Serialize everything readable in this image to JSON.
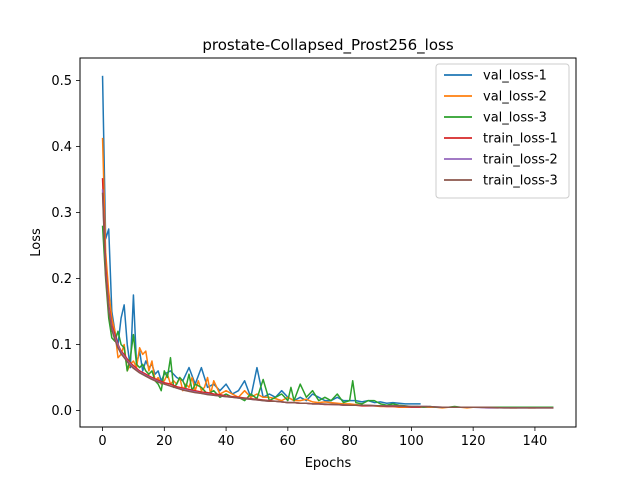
{
  "chart_data": {
    "type": "line",
    "title": "prostate-Collapsed_Prost256_loss",
    "xlabel": "Epochs",
    "ylabel": "Loss",
    "xlim": [
      -7.3,
      153.3
    ],
    "ylim": [
      -0.025,
      0.534
    ],
    "xticks": [
      0,
      20,
      40,
      60,
      80,
      100,
      120,
      140
    ],
    "yticks": [
      0.0,
      0.1,
      0.2,
      0.3,
      0.4,
      0.5
    ],
    "ytick_labels": [
      "0.0",
      "0.1",
      "0.2",
      "0.3",
      "0.4",
      "0.5"
    ],
    "grid": false,
    "legend_position": "top-right",
    "series": [
      {
        "name": "val_loss-1",
        "color": "#1f77b4",
        "x": [
          0,
          1,
          2,
          3,
          4,
          5,
          6,
          7,
          8,
          9,
          10,
          11,
          12,
          13,
          14,
          15,
          16,
          17,
          18,
          19,
          20,
          22,
          24,
          26,
          28,
          30,
          32,
          34,
          36,
          38,
          40,
          42,
          44,
          46,
          48,
          50,
          52,
          54,
          56,
          58,
          60,
          62,
          64,
          66,
          68,
          70,
          72,
          74,
          76,
          78,
          80,
          82,
          84,
          86,
          88,
          90,
          92,
          94,
          96,
          98,
          100,
          103
        ],
        "values": [
          0.507,
          0.26,
          0.275,
          0.15,
          0.12,
          0.1,
          0.14,
          0.16,
          0.1,
          0.065,
          0.175,
          0.07,
          0.09,
          0.06,
          0.075,
          0.065,
          0.07,
          0.055,
          0.06,
          0.045,
          0.055,
          0.06,
          0.05,
          0.045,
          0.065,
          0.04,
          0.065,
          0.035,
          0.04,
          0.03,
          0.04,
          0.025,
          0.03,
          0.045,
          0.02,
          0.065,
          0.02,
          0.025,
          0.02,
          0.03,
          0.02,
          0.015,
          0.02,
          0.015,
          0.025,
          0.02,
          0.015,
          0.015,
          0.02,
          0.015,
          0.015,
          0.015,
          0.013,
          0.015,
          0.012,
          0.013,
          0.011,
          0.012,
          0.011,
          0.01,
          0.01,
          0.01
        ]
      },
      {
        "name": "val_loss-2",
        "color": "#ff7f0e",
        "x": [
          0,
          1,
          2,
          3,
          4,
          5,
          6,
          7,
          8,
          9,
          10,
          11,
          12,
          13,
          14,
          15,
          16,
          17,
          18,
          19,
          20,
          21,
          22,
          23,
          24,
          25,
          26,
          27,
          28,
          29,
          30,
          31,
          32,
          33,
          34,
          35,
          36,
          38,
          40,
          42,
          44,
          46,
          48,
          50,
          52,
          54,
          56,
          58,
          60,
          62,
          64,
          66,
          68,
          70,
          72,
          74,
          76,
          78,
          80,
          82,
          84,
          86,
          88,
          90,
          92,
          94,
          96,
          98,
          100,
          102,
          104,
          106,
          108,
          110,
          112,
          114,
          116,
          118,
          120,
          122,
          124,
          126,
          128,
          130,
          132,
          134,
          136,
          138,
          140,
          142,
          144,
          146
        ],
        "values": [
          0.413,
          0.24,
          0.18,
          0.14,
          0.12,
          0.08,
          0.085,
          0.1,
          0.06,
          0.07,
          0.075,
          0.065,
          0.095,
          0.085,
          0.09,
          0.06,
          0.075,
          0.045,
          0.05,
          0.04,
          0.045,
          0.055,
          0.04,
          0.045,
          0.04,
          0.05,
          0.03,
          0.04,
          0.035,
          0.05,
          0.03,
          0.045,
          0.03,
          0.035,
          0.05,
          0.025,
          0.045,
          0.025,
          0.03,
          0.025,
          0.02,
          0.03,
          0.02,
          0.025,
          0.02,
          0.02,
          0.018,
          0.015,
          0.02,
          0.015,
          0.015,
          0.017,
          0.013,
          0.012,
          0.013,
          0.012,
          0.011,
          0.01,
          0.01,
          0.009,
          0.008,
          0.008,
          0.007,
          0.006,
          0.006,
          0.006,
          0.005,
          0.005,
          0.005,
          0.005,
          0.005,
          0.005,
          0.005,
          0.004,
          0.005,
          0.005,
          0.005,
          0.004,
          0.005,
          0.005,
          0.004,
          0.004,
          0.004,
          0.005,
          0.004,
          0.004,
          0.005,
          0.004,
          0.004,
          0.005,
          0.005,
          0.004
        ]
      },
      {
        "name": "val_loss-3",
        "color": "#2ca02c",
        "x": [
          0,
          1,
          2,
          3,
          4,
          5,
          6,
          7,
          8,
          9,
          10,
          11,
          12,
          13,
          14,
          15,
          16,
          17,
          18,
          19,
          20,
          21,
          22,
          23,
          24,
          25,
          26,
          27,
          28,
          29,
          30,
          32,
          34,
          36,
          38,
          40,
          42,
          44,
          46,
          48,
          50,
          52,
          54,
          56,
          58,
          60,
          61,
          62,
          64,
          66,
          68,
          70,
          72,
          74,
          76,
          78,
          80,
          81,
          82,
          84,
          86,
          88,
          90,
          92,
          94,
          96,
          98,
          100,
          102,
          104,
          106,
          108,
          110,
          112,
          114,
          116,
          118,
          120,
          122,
          124,
          126,
          128,
          130,
          132,
          134,
          136,
          138,
          140,
          142,
          144,
          146
        ],
        "values": [
          0.28,
          0.2,
          0.14,
          0.11,
          0.105,
          0.12,
          0.1,
          0.095,
          0.06,
          0.08,
          0.115,
          0.07,
          0.065,
          0.07,
          0.06,
          0.055,
          0.06,
          0.045,
          0.04,
          0.03,
          0.06,
          0.05,
          0.08,
          0.035,
          0.04,
          0.05,
          0.045,
          0.035,
          0.055,
          0.03,
          0.04,
          0.035,
          0.025,
          0.03,
          0.02,
          0.025,
          0.02,
          0.02,
          0.015,
          0.025,
          0.018,
          0.047,
          0.015,
          0.02,
          0.025,
          0.015,
          0.035,
          0.015,
          0.04,
          0.02,
          0.03,
          0.015,
          0.02,
          0.015,
          0.025,
          0.012,
          0.015,
          0.045,
          0.012,
          0.01,
          0.015,
          0.015,
          0.01,
          0.008,
          0.01,
          0.008,
          0.007,
          0.006,
          0.006,
          0.005,
          0.006,
          0.005,
          0.005,
          0.005,
          0.006,
          0.005,
          0.005,
          0.005,
          0.005,
          0.005,
          0.005,
          0.005,
          0.005,
          0.005,
          0.005,
          0.005,
          0.005,
          0.005,
          0.005,
          0.005,
          0.005
        ]
      },
      {
        "name": "train_loss-1",
        "color": "#d62728",
        "x": [
          0,
          1,
          2,
          3,
          4,
          5,
          6,
          7,
          8,
          9,
          10,
          12,
          14,
          16,
          18,
          20,
          22,
          24,
          26,
          28,
          30,
          32,
          34,
          36,
          38,
          40,
          42,
          44,
          46,
          48,
          50,
          52,
          54,
          56,
          58,
          60,
          62,
          64,
          66,
          68,
          70,
          72,
          74,
          76,
          78,
          80,
          82,
          84,
          86,
          88,
          90,
          92,
          94,
          96,
          98,
          100,
          103
        ],
        "values": [
          0.352,
          0.22,
          0.16,
          0.13,
          0.115,
          0.1,
          0.09,
          0.085,
          0.078,
          0.072,
          0.068,
          0.06,
          0.055,
          0.05,
          0.046,
          0.042,
          0.04,
          0.036,
          0.034,
          0.032,
          0.03,
          0.028,
          0.027,
          0.025,
          0.024,
          0.022,
          0.021,
          0.02,
          0.019,
          0.018,
          0.017,
          0.016,
          0.015,
          0.014,
          0.013,
          0.012,
          0.012,
          0.011,
          0.011,
          0.01,
          0.01,
          0.009,
          0.009,
          0.009,
          0.008,
          0.008,
          0.008,
          0.007,
          0.007,
          0.007,
          0.007,
          0.006,
          0.006,
          0.006,
          0.006,
          0.005,
          0.005
        ]
      },
      {
        "name": "train_loss-2",
        "color": "#9467bd",
        "x": [
          0,
          1,
          2,
          3,
          4,
          5,
          6,
          7,
          8,
          9,
          10,
          12,
          14,
          16,
          18,
          20,
          22,
          24,
          26,
          28,
          30,
          32,
          34,
          36,
          38,
          40,
          42,
          44,
          46,
          48,
          50,
          52,
          54,
          56,
          58,
          60,
          62,
          64,
          66,
          68,
          70,
          75,
          80,
          85,
          90,
          95,
          100,
          105,
          110,
          115,
          120,
          125,
          130,
          135,
          140,
          146
        ],
        "values": [
          0.335,
          0.21,
          0.155,
          0.125,
          0.11,
          0.098,
          0.088,
          0.082,
          0.075,
          0.07,
          0.065,
          0.058,
          0.053,
          0.048,
          0.044,
          0.04,
          0.037,
          0.034,
          0.032,
          0.03,
          0.028,
          0.026,
          0.025,
          0.023,
          0.022,
          0.021,
          0.02,
          0.019,
          0.018,
          0.017,
          0.016,
          0.015,
          0.014,
          0.014,
          0.013,
          0.012,
          0.012,
          0.011,
          0.011,
          0.01,
          0.01,
          0.009,
          0.008,
          0.008,
          0.007,
          0.007,
          0.006,
          0.006,
          0.005,
          0.005,
          0.005,
          0.004,
          0.004,
          0.004,
          0.004,
          0.004
        ]
      },
      {
        "name": "train_loss-3",
        "color": "#8c564b",
        "x": [
          0,
          1,
          2,
          3,
          4,
          5,
          6,
          7,
          8,
          9,
          10,
          12,
          14,
          16,
          18,
          20,
          22,
          24,
          26,
          28,
          30,
          32,
          34,
          36,
          38,
          40,
          42,
          44,
          46,
          48,
          50,
          52,
          54,
          56,
          58,
          60,
          62,
          64,
          66,
          68,
          70,
          75,
          80,
          85,
          90,
          95,
          100,
          105,
          110,
          115,
          120,
          125,
          130,
          135,
          140,
          146
        ],
        "values": [
          0.33,
          0.205,
          0.15,
          0.122,
          0.107,
          0.095,
          0.086,
          0.08,
          0.074,
          0.068,
          0.064,
          0.057,
          0.052,
          0.047,
          0.043,
          0.04,
          0.037,
          0.034,
          0.031,
          0.029,
          0.027,
          0.026,
          0.024,
          0.023,
          0.022,
          0.021,
          0.02,
          0.019,
          0.018,
          0.017,
          0.016,
          0.015,
          0.014,
          0.014,
          0.013,
          0.012,
          0.012,
          0.011,
          0.011,
          0.01,
          0.01,
          0.009,
          0.008,
          0.008,
          0.007,
          0.007,
          0.006,
          0.006,
          0.005,
          0.005,
          0.005,
          0.005,
          0.004,
          0.004,
          0.004,
          0.004
        ]
      }
    ]
  }
}
